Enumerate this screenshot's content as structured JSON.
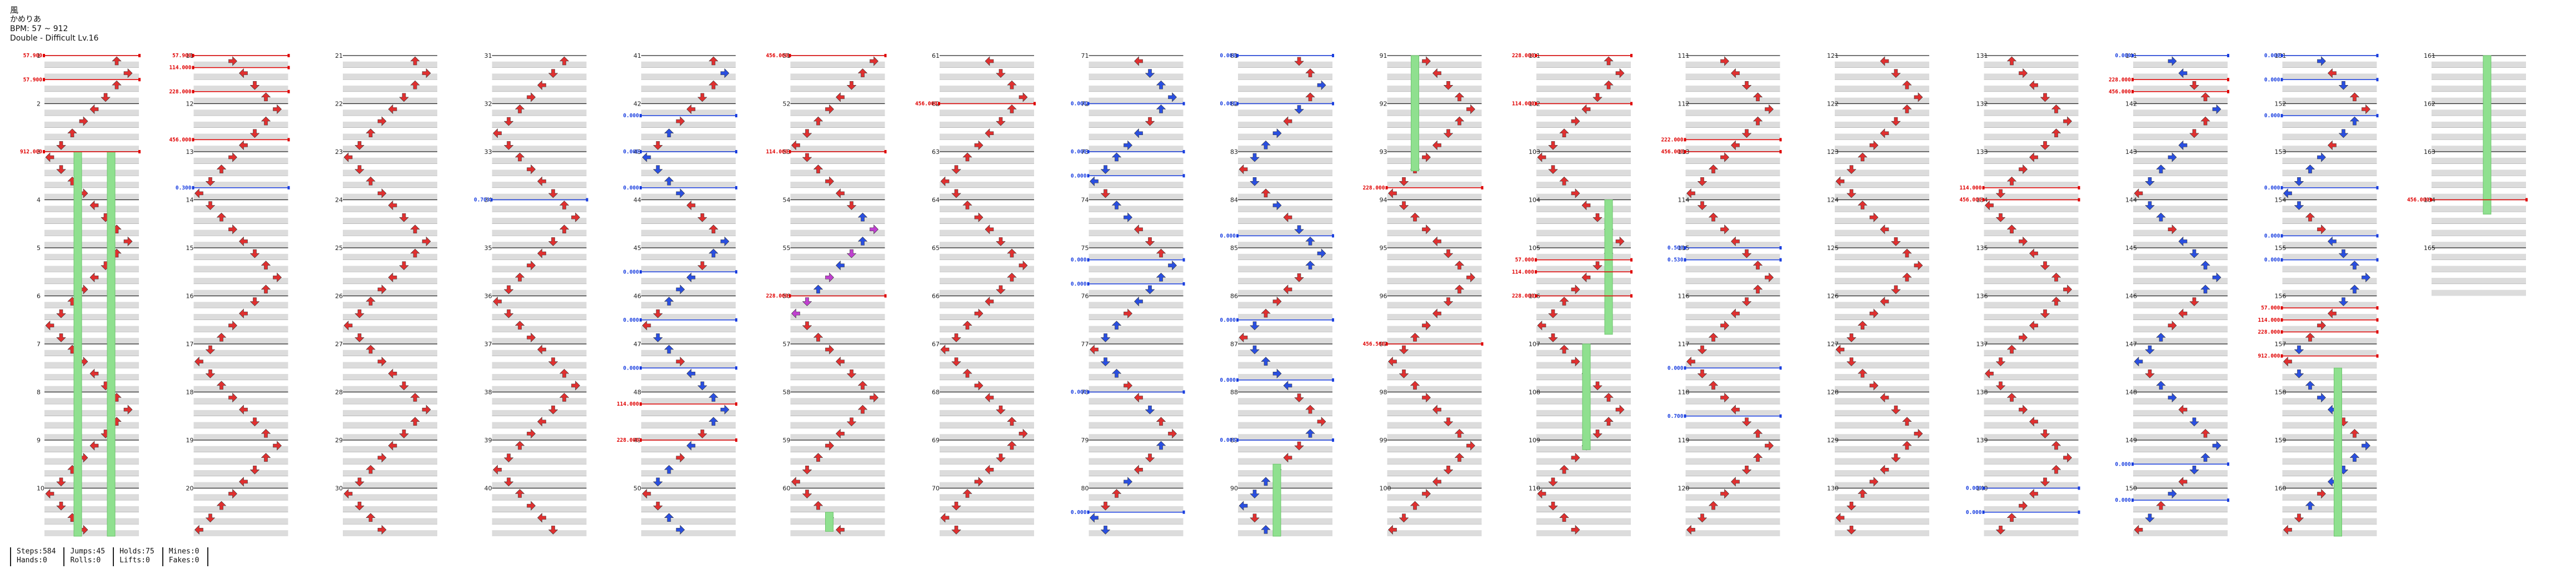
{
  "song": {
    "title": "風",
    "artist": "かめりあ",
    "bpm_line": "BPM: 57 ~ 912",
    "difficulty_line": "Double - Difficult Lv.16"
  },
  "stats": {
    "steps": "Steps:584",
    "jumps": "Jumps:45",
    "holds": "Holds:75",
    "mines": "Mines:0",
    "hands": "Hands:0",
    "rolls": "Rolls:0",
    "lifts": "Lifts:0",
    "fakes": "Fakes:0"
  },
  "colors": {
    "arrow_red": "#e03030",
    "arrow_blue": "#2a4fe0",
    "arrow_yellow": "#f0c020",
    "arrow_magenta": "#c040d0",
    "hold_green": "#8fe08f",
    "bpm_red": "#e00000",
    "stop_blue": "#1a3fe0",
    "lane_gray": "#dcdcdc"
  },
  "columns": [
    {
      "measures": [
        "1",
        "2",
        "3",
        "4",
        "5",
        "6",
        "7",
        "8",
        "9",
        "10"
      ],
      "bpm_changes": [
        {
          "measure_pos": 0.0,
          "label": "57.900",
          "type": "bpm"
        },
        {
          "measure_pos": 0.5,
          "label": "57.900",
          "type": "bpm"
        },
        {
          "measure_pos": 2.0,
          "label": "912.000",
          "type": "bpm"
        }
      ]
    },
    {
      "measures": [
        "11",
        "12",
        "13",
        "14",
        "15",
        "16",
        "17",
        "18",
        "19",
        "20"
      ],
      "bpm_changes": [
        {
          "measure_pos": 0.0,
          "label": "57.900",
          "type": "bpm"
        },
        {
          "measure_pos": 0.25,
          "label": "114.000",
          "type": "bpm"
        },
        {
          "measure_pos": 0.75,
          "label": "228.000",
          "type": "bpm"
        },
        {
          "measure_pos": 1.75,
          "label": "456.000",
          "type": "bpm"
        },
        {
          "measure_pos": 2.75,
          "label": "0.300",
          "type": "stop"
        }
      ]
    },
    {
      "measures": [
        "21",
        "22",
        "23",
        "24",
        "25",
        "26",
        "27",
        "28",
        "29",
        "30"
      ],
      "bpm_changes": []
    },
    {
      "measures": [
        "31",
        "32",
        "33",
        "34",
        "35",
        "36",
        "37",
        "38",
        "39",
        "40"
      ],
      "bpm_changes": [
        {
          "measure_pos": 3.0,
          "label": "0.703",
          "type": "stop"
        }
      ]
    },
    {
      "measures": [
        "41",
        "42",
        "43",
        "44",
        "45",
        "46",
        "47",
        "48",
        "49",
        "50"
      ],
      "bpm_changes": [
        {
          "measure_pos": 1.25,
          "label": "0.000",
          "type": "stop"
        },
        {
          "measure_pos": 2.0,
          "label": "0.000",
          "type": "stop"
        },
        {
          "measure_pos": 2.75,
          "label": "0.000",
          "type": "stop"
        },
        {
          "measure_pos": 4.5,
          "label": "0.000",
          "type": "stop"
        },
        {
          "measure_pos": 5.5,
          "label": "0.000",
          "type": "stop"
        },
        {
          "measure_pos": 6.5,
          "label": "0.000",
          "type": "stop"
        },
        {
          "measure_pos": 7.25,
          "label": "114.000",
          "type": "bpm"
        },
        {
          "measure_pos": 8.0,
          "label": "228.000",
          "type": "bpm"
        }
      ]
    },
    {
      "measures": [
        "51",
        "52",
        "53",
        "54",
        "55",
        "56",
        "57",
        "58",
        "59",
        "60"
      ],
      "bpm_changes": [
        {
          "measure_pos": 0.0,
          "label": "456.000",
          "type": "bpm"
        },
        {
          "measure_pos": 2.0,
          "label": "114.000",
          "type": "bpm"
        },
        {
          "measure_pos": 5.0,
          "label": "228.000",
          "type": "bpm"
        }
      ]
    },
    {
      "measures": [
        "61",
        "62",
        "63",
        "64",
        "65",
        "66",
        "67",
        "68",
        "69",
        "70"
      ],
      "bpm_changes": [
        {
          "measure_pos": 1.0,
          "label": "456.000",
          "type": "bpm"
        }
      ]
    },
    {
      "measures": [
        "71",
        "72",
        "73",
        "74",
        "75",
        "76",
        "77",
        "78",
        "79",
        "80"
      ],
      "bpm_changes": [
        {
          "measure_pos": 1.0,
          "label": "0.000",
          "type": "stop"
        },
        {
          "measure_pos": 2.0,
          "label": "0.000",
          "type": "stop"
        },
        {
          "measure_pos": 2.5,
          "label": "0.000",
          "type": "stop"
        },
        {
          "measure_pos": 4.25,
          "label": "0.000",
          "type": "stop"
        },
        {
          "measure_pos": 4.75,
          "label": "0.000",
          "type": "stop"
        },
        {
          "measure_pos": 7.0,
          "label": "0.000",
          "type": "stop"
        },
        {
          "measure_pos": 9.5,
          "label": "0.000",
          "type": "stop"
        }
      ]
    },
    {
      "measures": [
        "81",
        "82",
        "83",
        "84",
        "85",
        "86",
        "87",
        "88",
        "89",
        "90"
      ],
      "bpm_changes": [
        {
          "measure_pos": 0.0,
          "label": "0.000",
          "type": "stop"
        },
        {
          "measure_pos": 1.0,
          "label": "0.000",
          "type": "stop"
        },
        {
          "measure_pos": 3.75,
          "label": "0.000",
          "type": "stop"
        },
        {
          "measure_pos": 5.5,
          "label": "0.000",
          "type": "stop"
        },
        {
          "measure_pos": 6.75,
          "label": "0.000",
          "type": "stop"
        },
        {
          "measure_pos": 8.0,
          "label": "0.000",
          "type": "stop"
        }
      ]
    },
    {
      "measures": [
        "91",
        "92",
        "93",
        "94",
        "95",
        "96",
        "97",
        "98",
        "99",
        "100"
      ],
      "bpm_changes": [
        {
          "measure_pos": 2.75,
          "label": "228.000",
          "type": "bpm"
        },
        {
          "measure_pos": 6.0,
          "label": "456.500",
          "type": "bpm"
        }
      ]
    },
    {
      "measures": [
        "101",
        "102",
        "103",
        "104",
        "105",
        "106",
        "107",
        "108",
        "109",
        "110"
      ],
      "bpm_changes": [
        {
          "measure_pos": 0.0,
          "label": "228.000",
          "type": "bpm"
        },
        {
          "measure_pos": 1.0,
          "label": "114.000",
          "type": "bpm"
        },
        {
          "measure_pos": 4.25,
          "label": "57.000",
          "type": "bpm"
        },
        {
          "measure_pos": 4.5,
          "label": "114.000",
          "type": "bpm"
        },
        {
          "measure_pos": 5.0,
          "label": "228.000",
          "type": "bpm"
        }
      ]
    },
    {
      "measures": [
        "111",
        "112",
        "113",
        "114",
        "115",
        "116",
        "117",
        "118",
        "119",
        "120"
      ],
      "bpm_changes": [
        {
          "measure_pos": 1.75,
          "label": "222.000",
          "type": "bpm"
        },
        {
          "measure_pos": 2.0,
          "label": "456.000",
          "type": "bpm"
        },
        {
          "measure_pos": 4.0,
          "label": "0.500",
          "type": "stop"
        },
        {
          "measure_pos": 4.25,
          "label": "0.530",
          "type": "stop"
        },
        {
          "measure_pos": 6.5,
          "label": "0.000",
          "type": "stop"
        },
        {
          "measure_pos": 7.5,
          "label": "0.700",
          "type": "stop"
        }
      ]
    },
    {
      "measures": [
        "121",
        "122",
        "123",
        "124",
        "125",
        "126",
        "127",
        "128",
        "129",
        "130"
      ],
      "bpm_changes": []
    },
    {
      "measures": [
        "131",
        "132",
        "133",
        "134",
        "135",
        "136",
        "137",
        "138",
        "139",
        "140"
      ],
      "bpm_changes": [
        {
          "measure_pos": 2.75,
          "label": "114.000",
          "type": "bpm"
        },
        {
          "measure_pos": 3.0,
          "label": "456.000",
          "type": "bpm"
        },
        {
          "measure_pos": 9.0,
          "label": "0.000",
          "type": "stop"
        },
        {
          "measure_pos": 9.5,
          "label": "0.000",
          "type": "stop"
        }
      ]
    },
    {
      "measures": [
        "141",
        "142",
        "143",
        "144",
        "145",
        "146",
        "147",
        "148",
        "149",
        "150"
      ],
      "bpm_changes": [
        {
          "measure_pos": 0.0,
          "label": "0.000",
          "type": "stop"
        },
        {
          "measure_pos": 0.5,
          "label": "228.000",
          "type": "bpm"
        },
        {
          "measure_pos": 0.75,
          "label": "456.000",
          "type": "bpm"
        },
        {
          "measure_pos": 8.5,
          "label": "0.000",
          "type": "stop"
        },
        {
          "measure_pos": 9.25,
          "label": "0.000",
          "type": "stop"
        }
      ]
    },
    {
      "measures": [
        "151",
        "152",
        "153",
        "154",
        "155",
        "156",
        "157",
        "158",
        "159",
        "160"
      ],
      "bpm_changes": [
        {
          "measure_pos": 0.0,
          "label": "0.000",
          "type": "stop"
        },
        {
          "measure_pos": 0.5,
          "label": "0.000",
          "type": "stop"
        },
        {
          "measure_pos": 1.25,
          "label": "0.000",
          "type": "stop"
        },
        {
          "measure_pos": 2.75,
          "label": "0.000",
          "type": "stop"
        },
        {
          "measure_pos": 3.75,
          "label": "0.000",
          "type": "stop"
        },
        {
          "measure_pos": 4.25,
          "label": "0.000",
          "type": "stop"
        },
        {
          "measure_pos": 5.25,
          "label": "57.000",
          "type": "bpm"
        },
        {
          "measure_pos": 5.5,
          "label": "114.000",
          "type": "bpm"
        },
        {
          "measure_pos": 5.75,
          "label": "228.000",
          "type": "bpm"
        },
        {
          "measure_pos": 6.25,
          "label": "912.000",
          "type": "bpm"
        }
      ]
    },
    {
      "measures": [
        "161",
        "162",
        "163",
        "164",
        "165"
      ],
      "bpm_changes": [
        {
          "measure_pos": 3.0,
          "label": "456.000",
          "type": "bpm"
        }
      ]
    }
  ]
}
